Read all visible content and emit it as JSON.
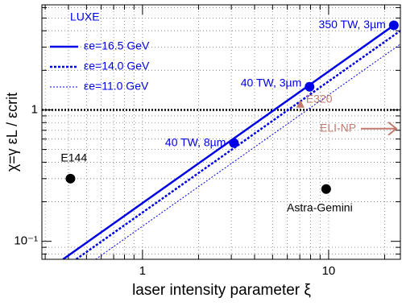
{
  "chart_data": {
    "type": "line",
    "xlabel": "laser intensity parameter ξ",
    "ylabel": "χ=γ εL / εcrit",
    "log_x": true,
    "log_y": true,
    "grid": true,
    "xlim": [
      0.288,
      24.3
    ],
    "ylim": [
      0.073,
      6.3
    ],
    "xticks": [
      1,
      10
    ],
    "yticks": [
      {
        "value": 0.1,
        "label": "10⁻¹"
      },
      1
    ],
    "xminorticks": [
      0.3,
      0.4,
      0.5,
      0.6,
      0.7,
      0.8,
      0.9,
      2,
      3,
      4,
      5,
      6,
      7,
      8,
      9,
      20
    ],
    "yminorticks": [
      0.08,
      0.09,
      0.2,
      0.3,
      0.4,
      0.5,
      0.6,
      0.7,
      0.8,
      0.9,
      2,
      3,
      4,
      5,
      6
    ],
    "legend_title": "LUXE",
    "legend": "upper left",
    "threshold": 1,
    "series": [
      {
        "name": "εe=16.5 GeV",
        "color": "#0000e6",
        "style": "solid",
        "x": [
          0.374,
          22.4
        ],
        "values": [
          0.073,
          4.4
        ]
      },
      {
        "name": "εe=14.0 GeV",
        "color": "#0000e6",
        "style": "dotted",
        "x": [
          0.44,
          24.3
        ],
        "values": [
          0.073,
          4.0
        ]
      },
      {
        "name": "εe=11.0 GeV",
        "color": "#0000e6",
        "style": "thin-dotted",
        "x": [
          0.56,
          24.3
        ],
        "values": [
          0.073,
          3.16
        ]
      }
    ],
    "points": [
      {
        "label": "350 TW, 3µm",
        "x": 22.4,
        "y": 4.4,
        "color": "#0000e6"
      },
      {
        "label": "40 TW, 3µm",
        "x": 7.9,
        "y": 1.5,
        "color": "#0000e6"
      },
      {
        "label": "40 TW, 8µm",
        "x": 3.1,
        "y": 0.56,
        "color": "#0000e6"
      },
      {
        "label": "E144",
        "x": 0.41,
        "y": 0.3,
        "color": "#000000"
      },
      {
        "label": "Astra-Gemini",
        "x": 9.7,
        "y": 0.25,
        "color": "#000000"
      }
    ],
    "e320": {
      "label": "E320",
      "x": 7.05,
      "y": 1.1,
      "color": "#c07a6e"
    },
    "eli_np": {
      "label": "ELI-NP",
      "y": 0.72,
      "color": "#c07a6e"
    }
  }
}
